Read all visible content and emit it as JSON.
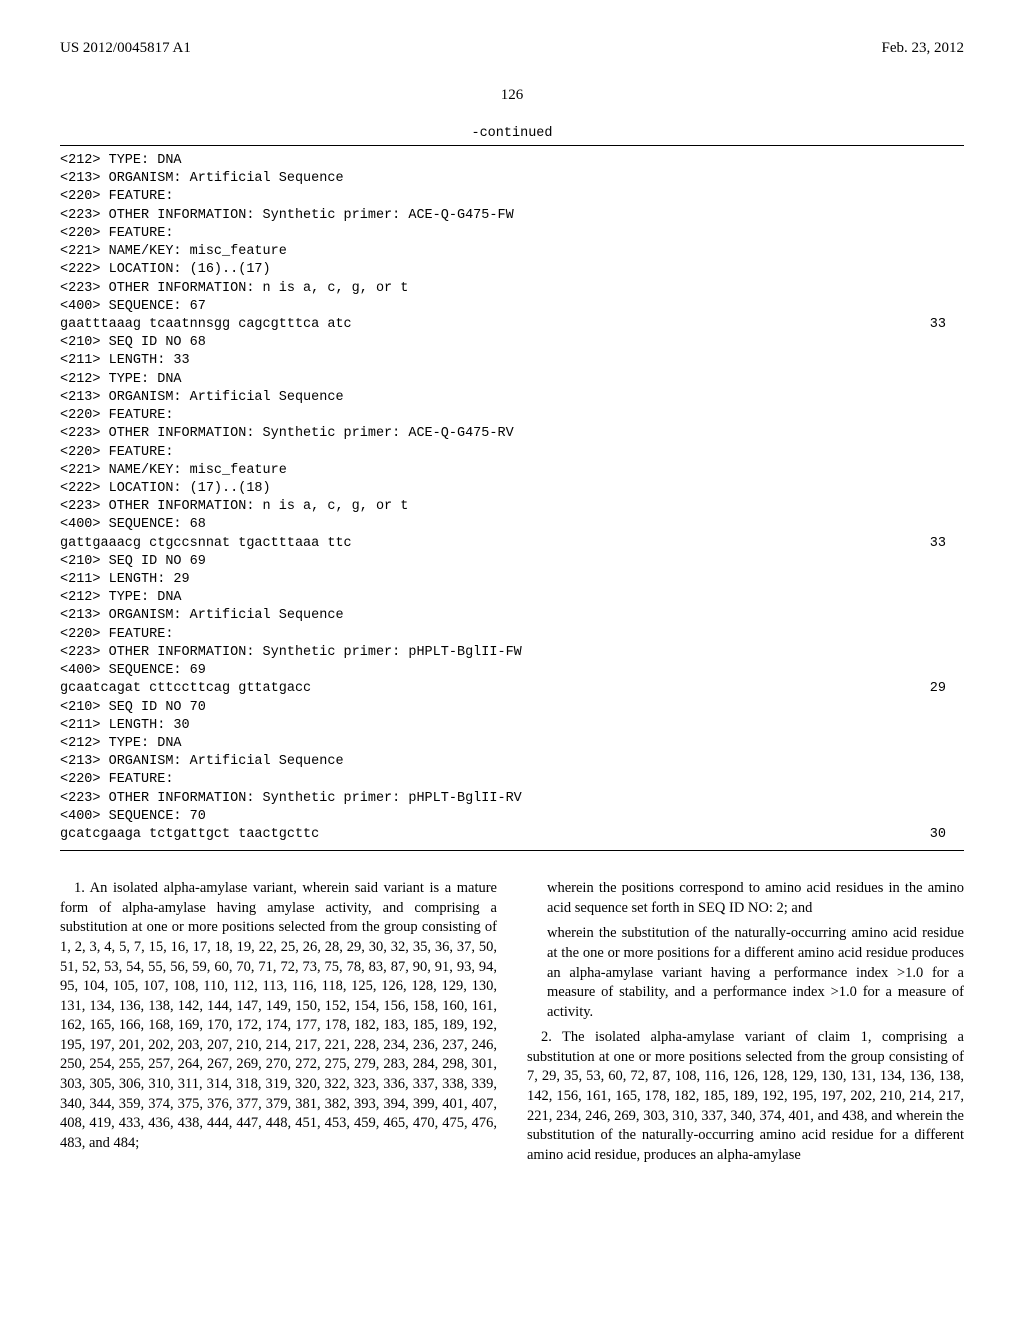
{
  "header": {
    "pub_number": "US 2012/0045817 A1",
    "pub_date": "Feb. 23, 2012"
  },
  "page_number": "126",
  "continued_label": "-continued",
  "sequences": [
    {
      "lines": [
        "<212> TYPE: DNA",
        "<213> ORGANISM: Artificial Sequence",
        "<220> FEATURE:",
        "<223> OTHER INFORMATION: Synthetic primer: ACE-Q-G475-FW",
        "<220> FEATURE:",
        "<221> NAME/KEY: misc_feature",
        "<222> LOCATION: (16)..(17)",
        "<223> OTHER INFORMATION: n is a, c, g, or t",
        "",
        "<400> SEQUENCE: 67"
      ],
      "seq_text": "gaatttaaag tcaatnnsgg cagcgtttca atc",
      "seq_len": "33"
    },
    {
      "lines": [
        "<210> SEQ ID NO 68",
        "<211> LENGTH: 33",
        "<212> TYPE: DNA",
        "<213> ORGANISM: Artificial Sequence",
        "<220> FEATURE:",
        "<223> OTHER INFORMATION: Synthetic primer: ACE-Q-G475-RV",
        "<220> FEATURE:",
        "<221> NAME/KEY: misc_feature",
        "<222> LOCATION: (17)..(18)",
        "<223> OTHER INFORMATION: n is a, c, g, or t",
        "",
        "<400> SEQUENCE: 68"
      ],
      "seq_text": "gattgaaacg ctgccsnnat tgactttaaa ttc",
      "seq_len": "33"
    },
    {
      "lines": [
        "<210> SEQ ID NO 69",
        "<211> LENGTH: 29",
        "<212> TYPE: DNA",
        "<213> ORGANISM: Artificial Sequence",
        "<220> FEATURE:",
        "<223> OTHER INFORMATION: Synthetic primer: pHPLT-BglII-FW",
        "",
        "<400> SEQUENCE: 69"
      ],
      "seq_text": "gcaatcagat cttccttcag gttatgacc",
      "seq_len": "29"
    },
    {
      "lines": [
        "<210> SEQ ID NO 70",
        "<211> LENGTH: 30",
        "<212> TYPE: DNA",
        "<213> ORGANISM: Artificial Sequence",
        "<220> FEATURE:",
        "<223> OTHER INFORMATION: Synthetic primer: pHPLT-BglII-RV",
        "",
        "<400> SEQUENCE: 70"
      ],
      "seq_text": "gcatcgaaga tctgattgct taactgcttc",
      "seq_len": "30"
    }
  ],
  "claims": {
    "claim1_p1": "1. An isolated alpha-amylase variant, wherein said variant is a mature form of alpha-amylase having amylase activity, and comprising a substitution at one or more positions selected from the group consisting of 1, 2, 3, 4, 5, 7, 15, 16, 17, 18, 19, 22, 25, 26, 28, 29, 30, 32, 35, 36, 37, 50, 51, 52, 53, 54, 55, 56, 59, 60, 70, 71, 72, 73, 75, 78, 83, 87, 90, 91, 93, 94, 95, 104, 105, 107, 108, 110, 112, 113, 116, 118, 125, 126, 128, 129, 130, 131, 134, 136, 138, 142, 144, 147, 149, 150, 152, 154, 156, 158, 160, 161, 162, 165, 166, 168, 169, 170, 172, 174, 177, 178, 182, 183, 185, 189, 192, 195, 197, 201, 202, 203, 207, 210, 214, 217, 221, 228, 234, 236, 237, 246, 250, 254, 255, 257, 264, 267, 269, 270, 272, 275, 279, 283, 284, 298, 301, 303, 305, 306, 310, 311, 314, 318, 319, 320, 322, 323, 336, 337, 338, 339, 340, 344, 359, 374, 375, 376, 377, 379, 381, 382, 393, 394, 399, 401, 407, 408, 419, 433, 436, 438, 444, 447, 448, 451, 453, 459, 465, 470, 475, 476, 483, and 484;",
    "claim1_p2": "wherein the positions correspond to amino acid residues in the amino acid sequence set forth in SEQ ID NO: 2; and",
    "claim1_p3": "wherein the substitution of the naturally-occurring amino acid residue at the one or more positions for a different amino acid residue produces an alpha-amylase variant having a performance index >1.0 for a measure of stability, and a performance index >1.0 for a measure of activity.",
    "claim2": "2. The isolated alpha-amylase variant of claim 1, comprising a substitution at one or more positions selected from the group consisting of 7, 29, 35, 53, 60, 72, 87, 108, 116, 126, 128, 129, 130, 131, 134, 136, 138, 142, 156, 161, 165, 178, 182, 185, 189, 192, 195, 197, 202, 210, 214, 217, 221, 234, 246, 269, 303, 310, 337, 340, 374, 401, and 438, and wherein the substitution of the naturally-occurring amino acid residue for a different amino acid residue, produces an alpha-amylase"
  }
}
